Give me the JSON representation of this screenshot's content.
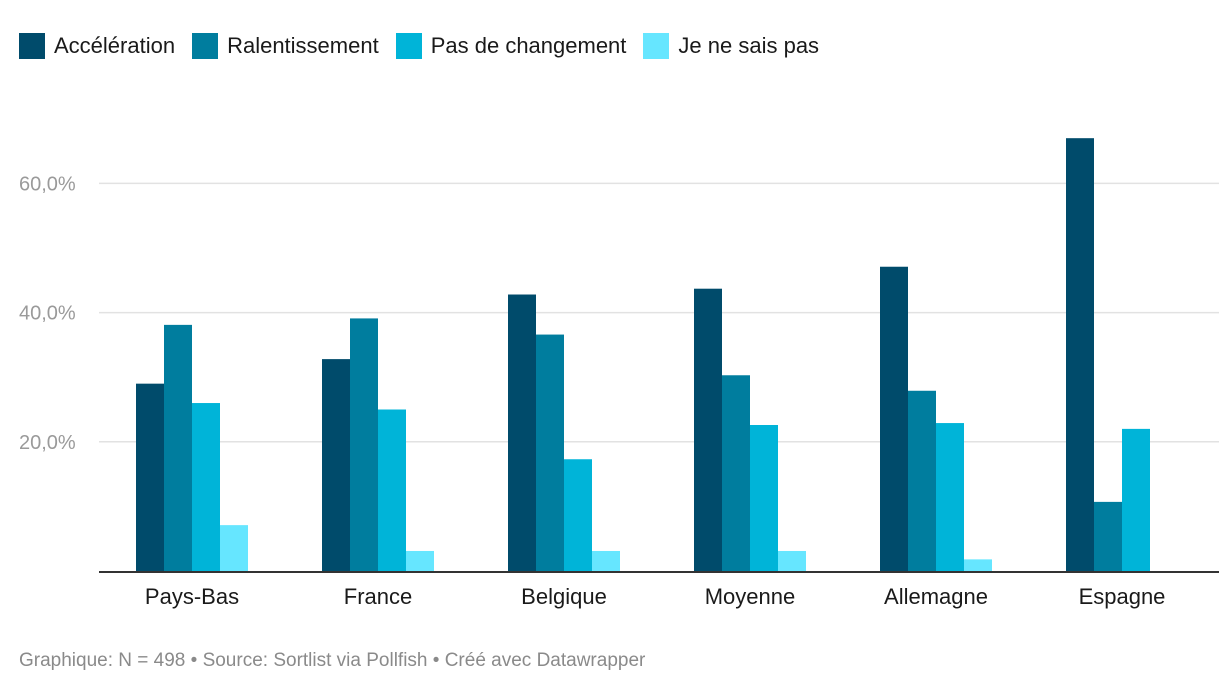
{
  "chart_data": {
    "type": "bar",
    "categories": [
      "Pays-Bas",
      "France",
      "Belgique",
      "Moyenne",
      "Allemagne",
      "Espagne"
    ],
    "series": [
      {
        "name": "Accélération",
        "color": "#004b6b",
        "values": [
          29,
          32.8,
          42.8,
          43.7,
          47.1,
          67
        ]
      },
      {
        "name": "Ralentissement",
        "color": "#007d9e",
        "values": [
          38.1,
          39.1,
          36.6,
          30.3,
          27.9,
          10.7
        ]
      },
      {
        "name": "Pas de changement",
        "color": "#00b4d8",
        "values": [
          26,
          25,
          17.3,
          22.6,
          22.9,
          22
        ]
      },
      {
        "name": "Je ne sais pas",
        "color": "#66e6ff",
        "values": [
          7.1,
          3.1,
          3.1,
          3.1,
          1.8,
          0
        ]
      }
    ],
    "y_ticks": [
      {
        "value": 20,
        "label": "20,0%"
      },
      {
        "value": 40,
        "label": "40,0%"
      },
      {
        "value": 60,
        "label": "60,0%"
      }
    ],
    "ylim": [
      0,
      70
    ],
    "grid": true,
    "legend_position": "top-left"
  },
  "footer": {
    "text": "Graphique: N = 498 • Source: Sortlist via Pollfish • Créé avec Datawrapper"
  }
}
